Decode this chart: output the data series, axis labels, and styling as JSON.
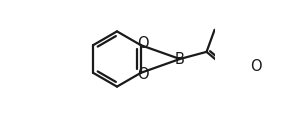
{
  "bg_color": "#ffffff",
  "line_color": "#1a1a1a",
  "line_width": 1.6,
  "font_size_atom": 10.5,
  "figsize": [
    2.98,
    1.18
  ],
  "dpi": 100,
  "xlim": [
    -0.05,
    1.0
  ],
  "ylim": [
    -0.52,
    0.42
  ]
}
